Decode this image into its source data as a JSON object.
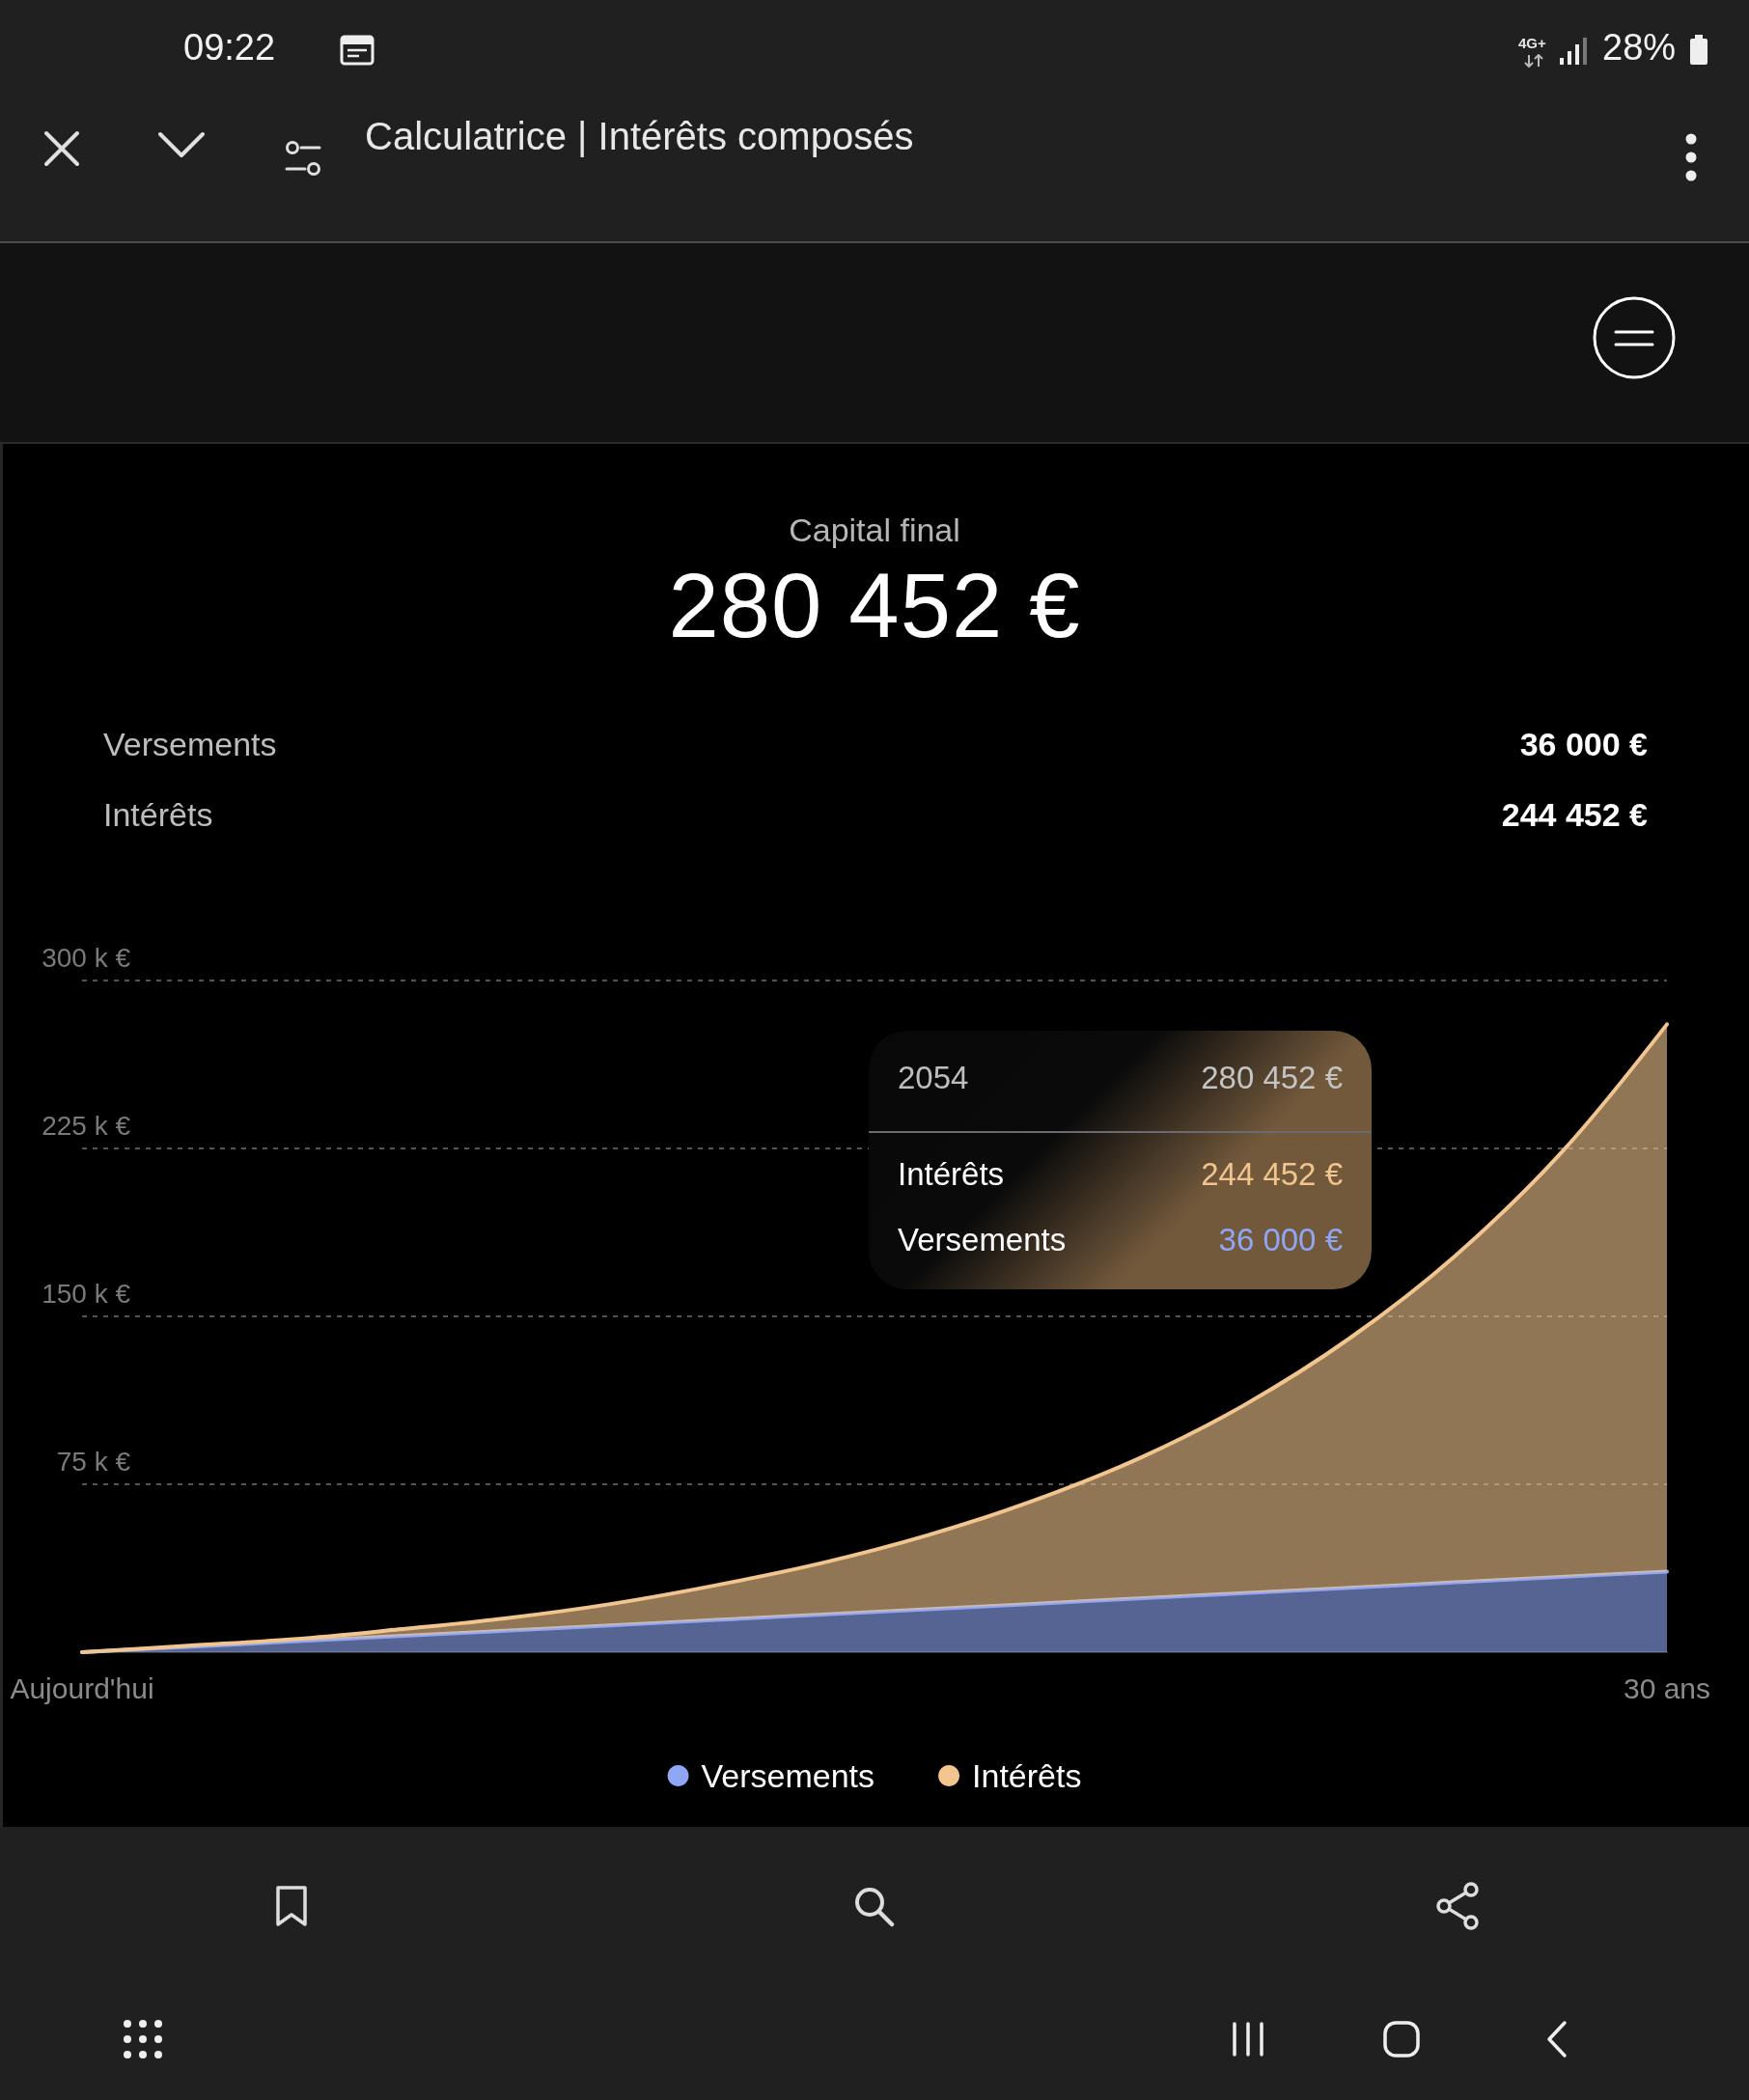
{
  "chart_data": {
    "type": "area",
    "title": "Capital final",
    "subtitle": "280 452 €",
    "categories": [
      "Aujourd'hui",
      null,
      null,
      null,
      null,
      null,
      null,
      null,
      null,
      null,
      null,
      null,
      null,
      null,
      null,
      "30 ans"
    ],
    "ylim": [
      0,
      300000
    ],
    "yticks": [
      {
        "value": 75000,
        "label": "75 k €"
      },
      {
        "value": 150000,
        "label": "150 k €"
      },
      {
        "value": 225000,
        "label": "225 k €"
      },
      {
        "value": 300000,
        "label": "300 k €"
      }
    ],
    "series": [
      {
        "name": "Versements",
        "color": "#8fa6f5",
        "values": [
          0,
          2400,
          4800,
          7200,
          9600,
          12000,
          14400,
          16800,
          19200,
          21600,
          24000,
          26400,
          28800,
          31200,
          33600,
          36000
        ]
      },
      {
        "name": "Intérêts",
        "color": "#f2c48e",
        "values": [
          0,
          500,
          1000,
          3000,
          5500,
          9500,
          15500,
          23000,
          33000,
          46000,
          62500,
          84000,
          111500,
          146000,
          189500,
          244452
        ]
      }
    ],
    "stacked": true,
    "grid": "y",
    "legend": "bottom",
    "marker": "none",
    "line_style": "solid",
    "annotations": [
      "36 000 €",
      "244 452 €",
      "2054",
      "280 452 €",
      "244 452 €",
      "36 000 €",
      "09:22",
      "4G+",
      "28%",
      "Calculatrice | Intérêts composés"
    ]
  }
}
